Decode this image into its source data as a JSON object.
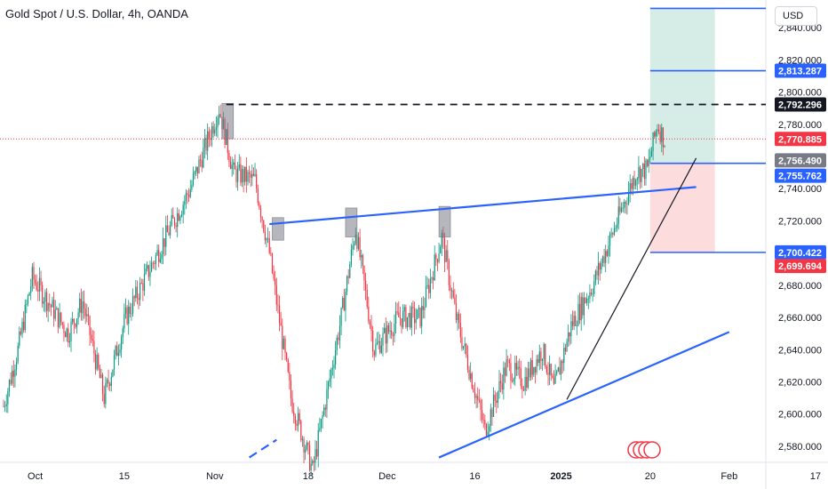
{
  "header": {
    "title": "Gold Spot / U.S. Dollar, 4h, OANDA",
    "currency_label": "USD"
  },
  "colors": {
    "up": "#089981",
    "down": "#f23645",
    "trendline": "#2962ff",
    "profit_zone": "#d5ede6",
    "loss_zone": "#fcdcdd",
    "label_blue": "#2962ff",
    "label_red": "#f23645",
    "label_black": "#131722",
    "label_gray": "#787b86"
  },
  "chart_data": {
    "type": "candlestick",
    "price_axis_ticks": [
      2580,
      2600,
      2620,
      2640,
      2660,
      2680,
      2700,
      2720,
      2740,
      2760,
      2780,
      2800,
      2820,
      2840
    ],
    "price_axis_tick_labels": [
      "2,580.000",
      "2,600.000",
      "2,620.000",
      "2,640.000",
      "2,660.000",
      "2,680.000",
      "2,700.000",
      "2,720.000",
      "2,740.000",
      "2,760.000",
      "2,780.000",
      "2,800.000",
      "2,820.000",
      "2,840.000"
    ],
    "time_axis_labels": [
      "Oct",
      "15",
      "Nov",
      "18",
      "Dec",
      "16",
      "2025",
      "20",
      "Feb",
      "17"
    ],
    "ylim": [
      2570,
      2855
    ],
    "price_labels": [
      {
        "value": 2813.287,
        "text": "2,813.287",
        "style": "blue"
      },
      {
        "value": 2792.296,
        "text": "2,792.296",
        "style": "black"
      },
      {
        "value": 2770.885,
        "text": "2,770.885",
        "style": "red"
      },
      {
        "value": 2756.49,
        "text": "2,756.490",
        "style": "gray"
      },
      {
        "value": 2755.762,
        "text": "2,755.762",
        "style": "blue"
      },
      {
        "value": 2700.422,
        "text": "2,700.422",
        "style": "blue"
      },
      {
        "value": 2699.694,
        "text": "2,699.694",
        "style": "red"
      }
    ],
    "position": {
      "target": 2852,
      "entry": 2756.49,
      "stop": 2700.422
    },
    "anchors": [
      {
        "t": 0,
        "p": 2605
      },
      {
        "t": 10,
        "p": 2640
      },
      {
        "t": 20,
        "p": 2685
      },
      {
        "t": 45,
        "p": 2650
      },
      {
        "t": 55,
        "p": 2670
      },
      {
        "t": 70,
        "p": 2610
      },
      {
        "t": 85,
        "p": 2660
      },
      {
        "t": 110,
        "p": 2705
      },
      {
        "t": 130,
        "p": 2740
      },
      {
        "t": 150,
        "p": 2790
      },
      {
        "t": 160,
        "p": 2750
      },
      {
        "t": 175,
        "p": 2745
      },
      {
        "t": 185,
        "p": 2700
      },
      {
        "t": 200,
        "p": 2610
      },
      {
        "t": 215,
        "p": 2565
      },
      {
        "t": 235,
        "p": 2660
      },
      {
        "t": 245,
        "p": 2715
      },
      {
        "t": 258,
        "p": 2640
      },
      {
        "t": 275,
        "p": 2660
      },
      {
        "t": 290,
        "p": 2660
      },
      {
        "t": 305,
        "p": 2710
      },
      {
        "t": 315,
        "p": 2660
      },
      {
        "t": 335,
        "p": 2590
      },
      {
        "t": 350,
        "p": 2630
      },
      {
        "t": 362,
        "p": 2620
      },
      {
        "t": 375,
        "p": 2640
      },
      {
        "t": 383,
        "p": 2615
      },
      {
        "t": 395,
        "p": 2655
      },
      {
        "t": 410,
        "p": 2680
      },
      {
        "t": 425,
        "p": 2715
      },
      {
        "t": 440,
        "p": 2750
      },
      {
        "t": 448,
        "p": 2752
      },
      {
        "t": 455,
        "p": 2780
      },
      {
        "t": 460,
        "p": 2770
      }
    ],
    "time_index_range": [
      0,
      460
    ],
    "trendlines": [
      {
        "name": "resistance",
        "from": {
          "t": 185,
          "p": 2718
        },
        "to": {
          "t": 482,
          "p": 2741
        }
      },
      {
        "name": "lower-support",
        "from": {
          "t": 303,
          "p": 2573
        },
        "to": {
          "t": 505,
          "p": 2651
        }
      },
      {
        "name": "steep-support",
        "from": {
          "t": 392,
          "p": 2609
        },
        "to": {
          "t": 482,
          "p": 2759
        }
      },
      {
        "name": "partial-segment",
        "from": {
          "t": 171,
          "p": 2573
        },
        "to": {
          "t": 190,
          "p": 2584
        }
      }
    ],
    "horizontal_lines": [
      {
        "name": "swing-high-dashed",
        "value": 2792.296,
        "from_t": 155,
        "style": "dashed"
      },
      {
        "name": "take-profit",
        "value": 2813.287,
        "from_t": 450,
        "style": "solid"
      },
      {
        "name": "top",
        "value": 2852,
        "from_t": 450,
        "style": "solid"
      },
      {
        "name": "entry",
        "value": 2755.762,
        "from_t": 450,
        "style": "solid"
      },
      {
        "name": "stop-loss",
        "value": 2700.422,
        "from_t": 450,
        "style": "solid"
      }
    ],
    "highlight_boxes": [
      {
        "t0": 152,
        "t1": 160,
        "p0": 2771,
        "p1": 2793
      },
      {
        "t0": 187,
        "t1": 195,
        "p0": 2708,
        "p1": 2722
      },
      {
        "t0": 238,
        "t1": 246,
        "p0": 2710,
        "p1": 2728
      },
      {
        "t0": 303,
        "t1": 311,
        "p0": 2710,
        "p1": 2729
      }
    ]
  }
}
